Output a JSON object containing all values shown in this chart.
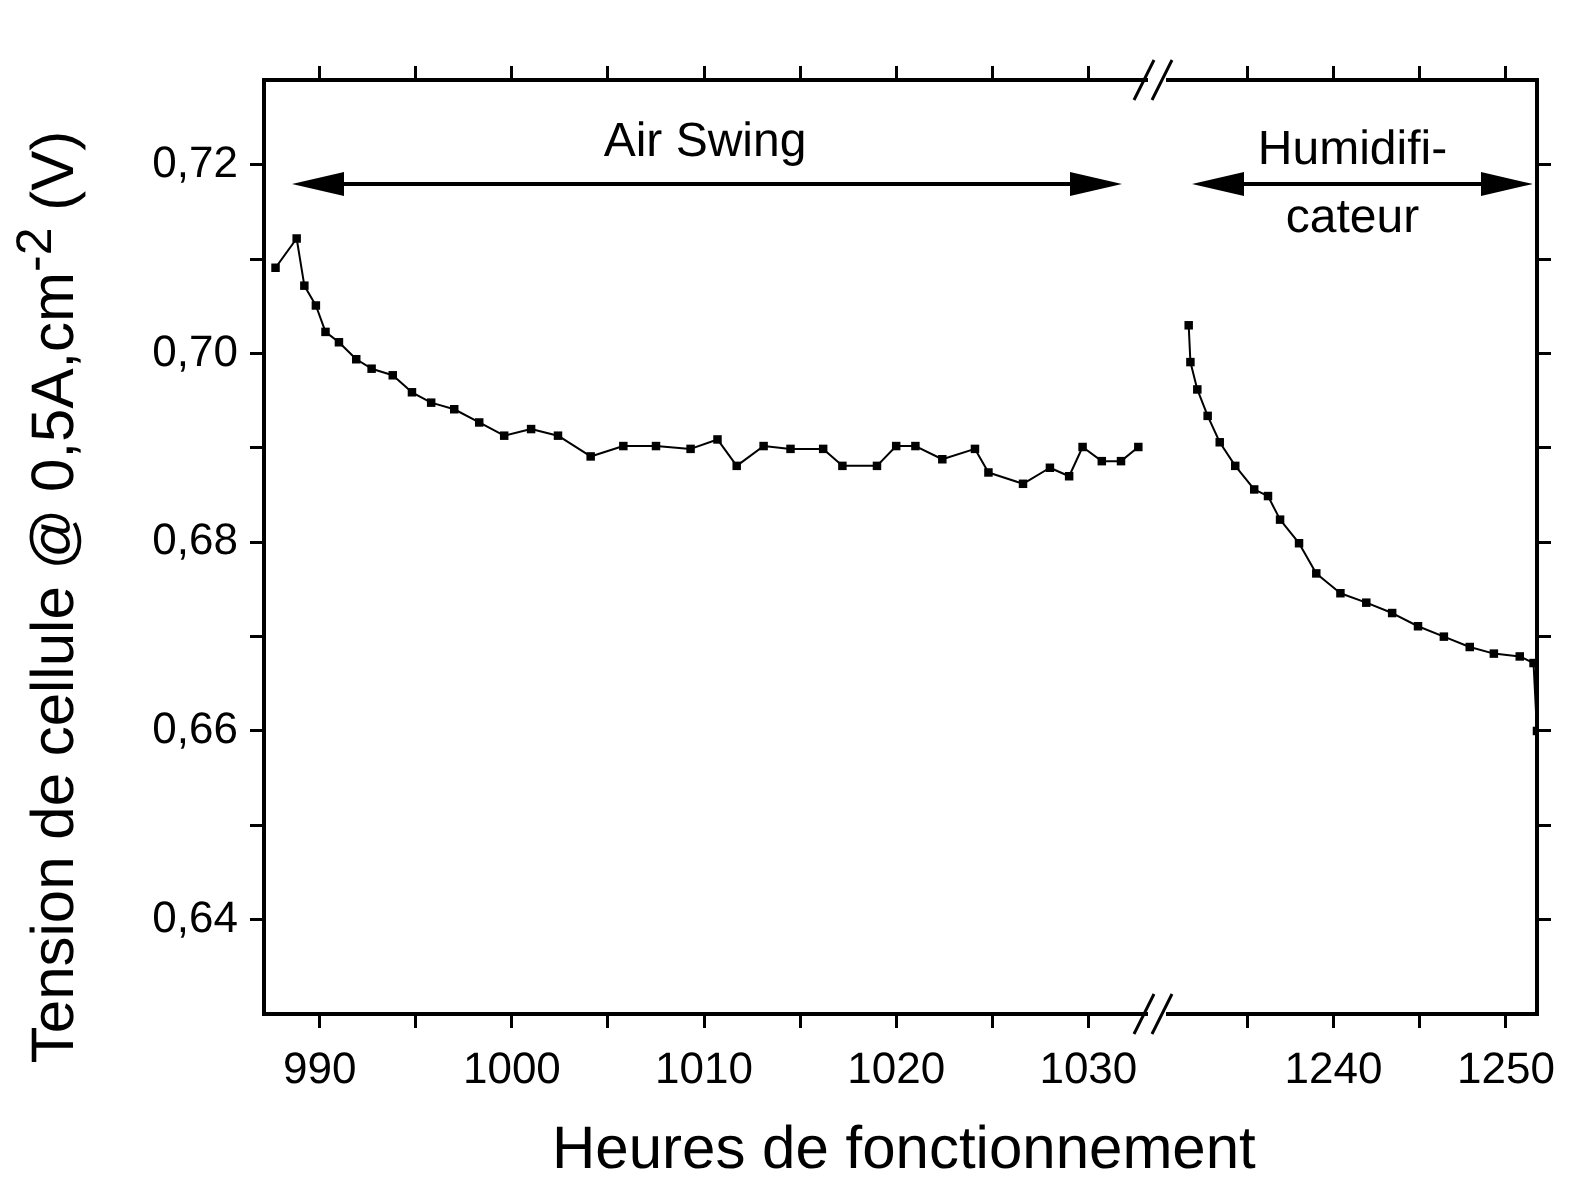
{
  "chart_data": [
    {
      "type": "line",
      "ylabel": "Tension de cellule @ 0,5A,cm$^{-2}$ (V)",
      "xlabel": "Heures de fonctionnement",
      "annotations": [
        "Air Swing"
      ],
      "series": [
        {
          "color": "#000000",
          "x": [
            987.7,
            988.8,
            989.2,
            989.8,
            990.3,
            991.0,
            991.9,
            992.7,
            993.8,
            994.8,
            995.8,
            997.0,
            998.3,
            999.6,
            1001.0,
            1002.4,
            1004.1,
            1005.8,
            1007.5,
            1009.3,
            1010.7,
            1011.7,
            1013.1,
            1014.5,
            1016.2,
            1017.2,
            1019.0,
            1020.0,
            1021.0,
            1022.4,
            1024.1,
            1024.8,
            1026.6,
            1028.0,
            1029.0,
            1029.7,
            1030.7,
            1031.7,
            1032.6
          ],
          "values": [
            0.7091,
            0.7122,
            0.7072,
            0.7051,
            0.7023,
            0.7012,
            0.6994,
            0.6984,
            0.6977,
            0.6959,
            0.6948,
            0.6941,
            0.6927,
            0.6913,
            0.692,
            0.6913,
            0.6891,
            0.6902,
            0.6902,
            0.6899,
            0.6909,
            0.6881,
            0.6902,
            0.6899,
            0.6899,
            0.6881,
            0.6881,
            0.6902,
            0.6902,
            0.6888,
            0.6899,
            0.6874,
            0.6862,
            0.6879,
            0.687,
            0.6901,
            0.6886,
            0.6886,
            0.6901
          ]
        }
      ],
      "xlim": [
        987.1,
        1033.0
      ],
      "xticks": [
        990,
        {
          "value": 995,
          "label": null
        },
        1000,
        {
          "value": 1005,
          "label": null
        },
        1010,
        {
          "value": 1015,
          "label": null
        },
        1020,
        {
          "value": 1025,
          "label": null
        },
        1030
      ],
      "ylim": [
        0.63,
        0.729
      ],
      "yticks": [
        {
          "value": 0.64,
          "label": "0,64"
        },
        {
          "value": 0.65,
          "label": null
        },
        {
          "value": 0.66,
          "label": "0,66"
        },
        {
          "value": 0.67,
          "label": null
        },
        {
          "value": 0.68,
          "label": "0,68"
        },
        {
          "value": 0.69,
          "label": null
        },
        {
          "value": 0.7,
          "label": "0,70"
        },
        {
          "value": 0.71,
          "label": null
        },
        {
          "value": 0.72,
          "label": "0,72"
        }
      ],
      "marker": "square",
      "line_style": "solid"
    },
    {
      "type": "line",
      "annotations": [
        "Humidifi-\ncateur"
      ],
      "series": [
        {
          "color": "#000000",
          "x": [
            1231.6,
            1231.7,
            1232.1,
            1232.7,
            1233.4,
            1234.3,
            1235.4,
            1236.2,
            1236.9,
            1238.0,
            1239.0,
            1240.4,
            1241.9,
            1243.4,
            1244.9,
            1246.4,
            1247.9,
            1249.3,
            1250.8,
            1251.6,
            1251.8
          ],
          "values": [
            0.703,
            0.6991,
            0.6962,
            0.6934,
            0.6906,
            0.6881,
            0.6856,
            0.6849,
            0.6824,
            0.6799,
            0.6767,
            0.6746,
            0.6736,
            0.6725,
            0.6711,
            0.67,
            0.6689,
            0.6682,
            0.6679,
            0.6672,
            0.66
          ]
        }
      ],
      "xlim": [
        1230.4,
        1251.8
      ],
      "xticks": [
        {
          "value": 1235,
          "label": null
        },
        1240,
        {
          "value": 1245,
          "label": null
        },
        1250
      ],
      "ylim": [
        0.63,
        0.729
      ],
      "yticks": [
        {
          "value": 0.64,
          "label": null
        },
        {
          "value": 0.65,
          "label": null
        },
        {
          "value": 0.66,
          "label": null
        },
        {
          "value": 0.67,
          "label": null
        },
        {
          "value": 0.68,
          "label": null
        },
        {
          "value": 0.69,
          "label": null
        },
        {
          "value": 0.7,
          "label": null
        },
        {
          "value": 0.71,
          "label": null
        },
        {
          "value": 0.72,
          "label": null
        }
      ],
      "tick_labels": "x",
      "marker": "square",
      "line_style": "solid"
    }
  ]
}
